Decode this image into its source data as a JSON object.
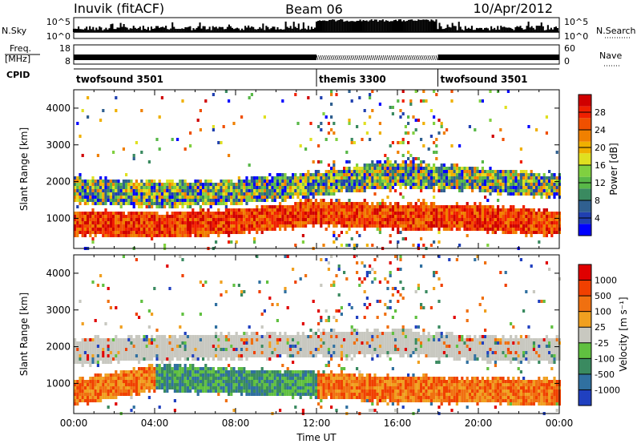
{
  "header": {
    "station": "Inuvik (fitACF)",
    "beam": "Beam 06",
    "date": "10/Apr/2012"
  },
  "summary_panels": {
    "nsky_label": "N.Sky",
    "nsky_ticks": [
      "10^5",
      "10^0"
    ],
    "nsearch_label": "N.Search",
    "nsearch_ticks": [
      "10^5",
      "10^0"
    ],
    "freq_label_line1": "Freq.",
    "freq_label_line2": "[MHz]",
    "freq_ticks": [
      "18",
      "8"
    ],
    "nave_label": "Nave",
    "nave_ticks": [
      "60",
      "0"
    ],
    "cpid_label": "CPID",
    "cpid_segments": [
      {
        "label": "twofsound 3501",
        "start_hour": 0
      },
      {
        "label": "themis 3300",
        "start_hour": 12
      },
      {
        "label": "twofsound 3501",
        "start_hour": 18
      }
    ]
  },
  "chart_data": [
    {
      "type": "heatmap",
      "title": "",
      "ylabel": "Slant Range [km]",
      "xlabel": "",
      "x_ticks": [
        "00:00",
        "04:00",
        "08:00",
        "12:00",
        "16:00",
        "20:00",
        "00:00"
      ],
      "x_range_hours": [
        0,
        24
      ],
      "y_ticks": [
        1000,
        2000,
        3000,
        4000
      ],
      "y_range": [
        180,
        4500
      ],
      "colorbar": {
        "label": "Power [dB]",
        "ticks": [
          "28",
          "24",
          "20",
          "16",
          "12",
          "8",
          "4"
        ],
        "colors": [
          "#0000ff",
          "#2040b0",
          "#306090",
          "#3a8a60",
          "#58b848",
          "#80d040",
          "#e0e020",
          "#f0b000",
          "#f08000",
          "#f05000",
          "#f02000",
          "#d00000"
        ]
      },
      "echo_bands": [
        {
          "name": "near",
          "start_hour": 0,
          "end_hour": 24,
          "center_km": [
            900,
            850,
            950,
            1200,
            1100,
            1050,
            900
          ],
          "level": 0.9
        },
        {
          "name": "far",
          "start_hour": 0,
          "end_hour": 24,
          "center_km": [
            1800,
            1700,
            1750,
            2000,
            2250,
            2100,
            1900
          ],
          "level": 0.55
        }
      ]
    },
    {
      "type": "heatmap",
      "title": "",
      "ylabel": "Slant Range [km]",
      "xlabel": "Time UT",
      "x_ticks": [
        "00:00",
        "04:00",
        "08:00",
        "12:00",
        "16:00",
        "20:00",
        "00:00"
      ],
      "x_range_hours": [
        0,
        24
      ],
      "y_ticks": [
        1000,
        2000,
        3000,
        4000
      ],
      "y_range": [
        180,
        4500
      ],
      "colorbar": {
        "label": "Velocity [m s⁻¹]",
        "ticks": [
          "1000",
          "500",
          "100",
          "25",
          "-25",
          "-100",
          "-500",
          "-1000"
        ],
        "colors": [
          "#2040c0",
          "#3070a0",
          "#3a8a60",
          "#60c040",
          "#c8c8c0",
          "#f0a020",
          "#f07010",
          "#f04000",
          "#e00000"
        ]
      },
      "echo_bands": [
        {
          "name": "near",
          "start_hour": 0,
          "end_hour": 24,
          "center_km": [
            800,
            1200,
            1100,
            1000,
            900,
            850,
            800
          ],
          "level": "mixed"
        },
        {
          "name": "far",
          "start_hour": 0,
          "end_hour": 24,
          "center_km": [
            1900,
            2000,
            2050,
            2100,
            2150,
            2000,
            1950
          ],
          "level": "near-zero"
        }
      ]
    }
  ]
}
